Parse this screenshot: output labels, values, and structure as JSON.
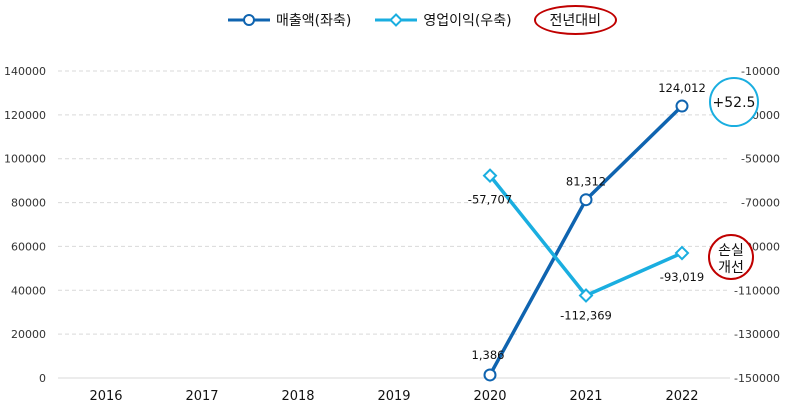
{
  "legend": {
    "items": [
      {
        "label": "매출액(좌축)",
        "color": "#0f64b0",
        "marker": "circle"
      },
      {
        "label": "영업이익(우축)",
        "color": "#1aaee0",
        "marker": "diamond"
      }
    ],
    "yoy_label": "전년대비"
  },
  "chart_data": {
    "type": "line",
    "categories": [
      "2016",
      "2017",
      "2018",
      "2019",
      "2020",
      "2021",
      "2022"
    ],
    "series": [
      {
        "name": "매출액(좌축)",
        "axis": "left",
        "color": "#0f64b0",
        "marker": "circle",
        "values": [
          null,
          null,
          null,
          null,
          1386,
          81312,
          124012
        ],
        "labels": [
          "",
          "",
          "",
          "",
          "1,386",
          "81,312",
          "124,012"
        ]
      },
      {
        "name": "영업이익(우축)",
        "axis": "right",
        "color": "#1aaee0",
        "marker": "diamond",
        "values": [
          null,
          null,
          null,
          null,
          -57707,
          -112369,
          -93019
        ],
        "labels": [
          "",
          "",
          "",
          "",
          "-57,707",
          "-112,369",
          "-93,019"
        ]
      }
    ],
    "y_left": {
      "min": 0,
      "max": 140000,
      "step": 20000,
      "ticks": [
        "0",
        "20000",
        "40000",
        "60000",
        "80000",
        "100000",
        "120000",
        "140000"
      ]
    },
    "y_right": {
      "min": -150000,
      "max": -10000,
      "step": 20000,
      "ticks": [
        "-150000",
        "-130000",
        "-110000",
        "-90000",
        "-70000",
        "-50000",
        "-30000",
        "-10000"
      ]
    },
    "grid": true,
    "callouts": [
      {
        "text": "+52.5",
        "color": "#1aaee0",
        "near_series": 0,
        "near_index": 6
      },
      {
        "text": "손실\n개선",
        "color": "#c00000",
        "near_series": 1,
        "near_index": 6
      }
    ]
  }
}
